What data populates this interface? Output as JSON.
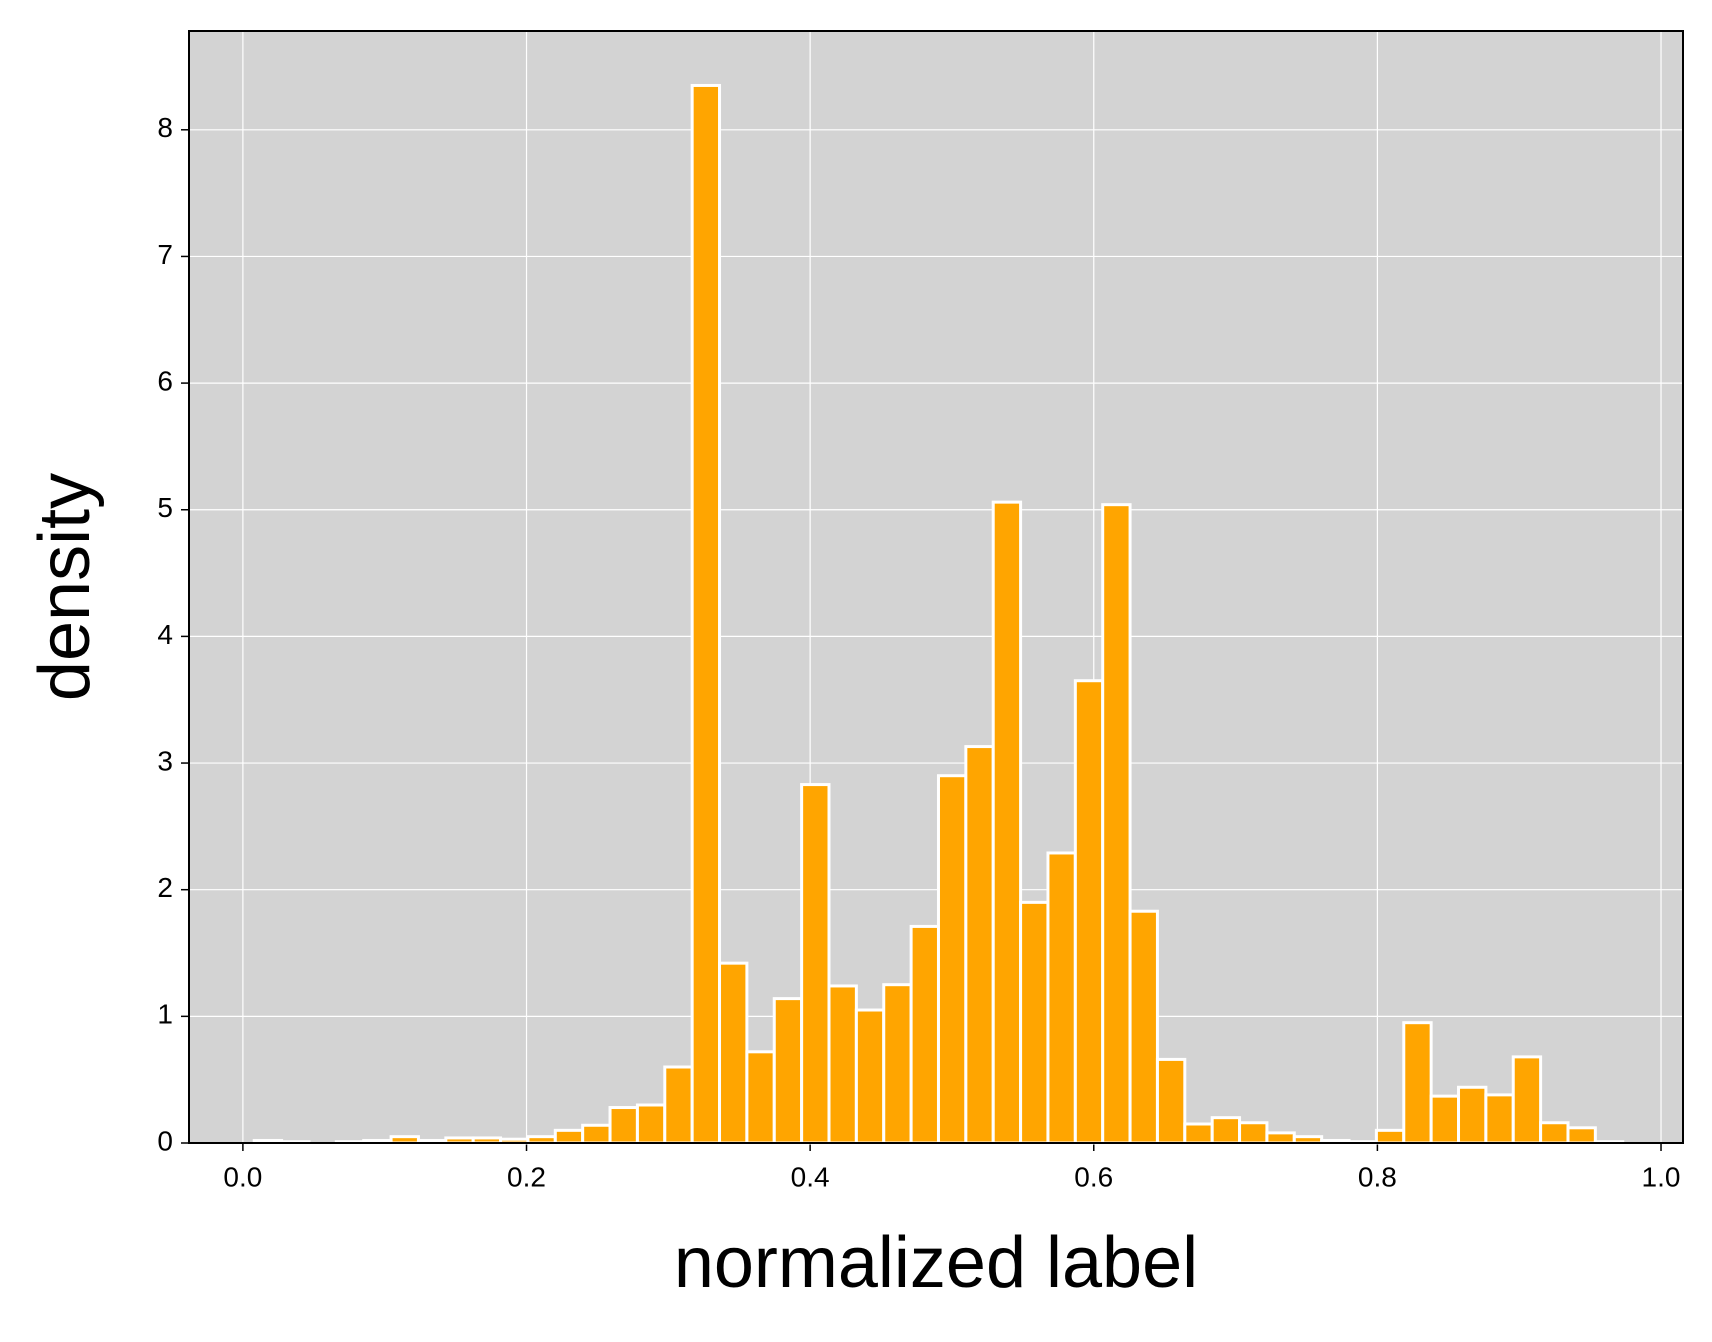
{
  "chart_data": {
    "type": "histogram",
    "xlabel": "normalized label",
    "ylabel": "density",
    "bins": [
      0.008,
      0.0273,
      0.0466,
      0.0659,
      0.0852,
      0.1045,
      0.1238,
      0.1431,
      0.1624,
      0.1817,
      0.201,
      0.2203,
      0.2396,
      0.2589,
      0.2782,
      0.2975,
      0.3168,
      0.3361,
      0.3554,
      0.3747,
      0.394,
      0.4133,
      0.4326,
      0.4519,
      0.4712,
      0.4905,
      0.5098,
      0.5291,
      0.5484,
      0.5677,
      0.587,
      0.6063,
      0.6256,
      0.6449,
      0.6642,
      0.6835,
      0.7028,
      0.7221,
      0.7414,
      0.7607,
      0.78,
      0.7993,
      0.8186,
      0.8379,
      0.8572,
      0.8765,
      0.8958,
      0.9151,
      0.9344,
      0.9537,
      0.973
    ],
    "values": [
      0.02,
      0.01,
      0.0,
      0.01,
      0.02,
      0.05,
      0.02,
      0.04,
      0.04,
      0.03,
      0.05,
      0.1,
      0.14,
      0.28,
      0.3,
      0.6,
      8.35,
      1.42,
      0.72,
      1.14,
      2.83,
      1.24,
      1.05,
      1.25,
      1.71,
      2.9,
      3.13,
      5.06,
      1.9,
      2.29,
      3.65,
      5.04,
      1.83,
      0.66,
      0.15,
      0.2,
      0.16,
      0.08,
      0.05,
      0.02,
      0.01,
      0.1,
      0.95,
      0.37,
      0.44,
      0.38,
      0.68,
      0.16,
      0.12,
      0.01
    ],
    "color": "#ffa500",
    "edgecolor": "#ffffff",
    "background": "#d3d3d3",
    "grid": true,
    "xlim": [
      -0.038,
      1.0155
    ],
    "ylim": [
      0,
      8.78
    ],
    "xticks": [
      {
        "value": 0,
        "label": "0.0"
      },
      {
        "value": 0.2,
        "label": "0.2"
      },
      {
        "value": 0.4,
        "label": "0.4"
      },
      {
        "value": 0.6,
        "label": "0.6"
      },
      {
        "value": 0.8,
        "label": "0.8"
      },
      {
        "value": 1,
        "label": "1.0"
      }
    ],
    "yticks": [
      0,
      1,
      2,
      3,
      4,
      5,
      6,
      7,
      8
    ]
  }
}
